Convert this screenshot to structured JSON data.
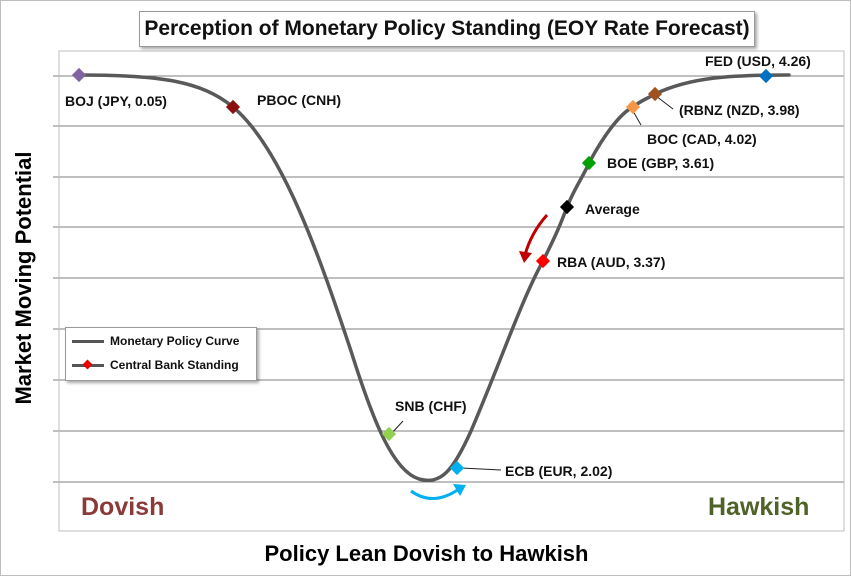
{
  "chart_data": {
    "type": "line",
    "title": "Perception of Monetary Policy Standing (EOY Rate Forecast)",
    "xlabel": "Policy Lean Dovish to Hawkish",
    "ylabel": "Market Moving Potential",
    "left_label": "Dovish",
    "right_label": "Hawkish",
    "legend": {
      "placement": "bottom-left",
      "entries": [
        {
          "name": "Monetary Policy Curve"
        },
        {
          "name": "Central Bank Standing"
        }
      ]
    },
    "grid": true,
    "curve_color": "#595959",
    "points": [
      {
        "label": "BOJ (JPY, 0.05)",
        "color": "#8064a2"
      },
      {
        "label": "PBOC (CNH)",
        "color": "#8b0f0f"
      },
      {
        "label": "SNB (CHF)",
        "color": "#92d050"
      },
      {
        "label": "ECB (EUR, 2.02)",
        "color": "#00b0f0"
      },
      {
        "label": "RBA (AUD, 3.37)",
        "color": "#ff0000"
      },
      {
        "label": "Average",
        "color": "#000000"
      },
      {
        "label": "BOE (GBP, 3.61)",
        "color": "#00a000"
      },
      {
        "label": "BOC (CAD, 4.02)",
        "color": "#f79646"
      },
      {
        "label": "(RBNZ (NZD, 3.98)",
        "color": "#a0521e"
      },
      {
        "label": "FED (USD, 4.26)",
        "color": "#0070c0"
      }
    ],
    "annotation_colors": {
      "dark_red_arrow": "#c00000",
      "blue_arrow": "#00b0f0"
    }
  }
}
